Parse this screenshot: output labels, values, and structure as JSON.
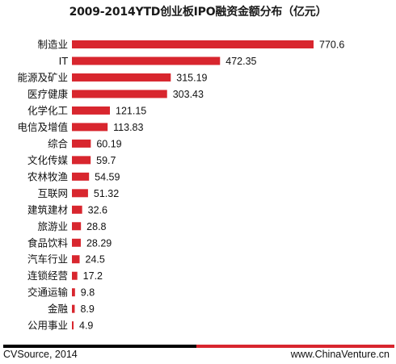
{
  "chart_data": {
    "type": "bar",
    "orientation": "horizontal",
    "title": "2009-2014YTD创业板IPO融资金额分布（亿元）",
    "categories": [
      "制造业",
      "IT",
      "能源及矿业",
      "医疗健康",
      "化学化工",
      "电信及增值",
      "综合",
      "文化传媒",
      "农林牧渔",
      "互联网",
      "建筑建材",
      "旅游业",
      "食品饮料",
      "汽车行业",
      "连锁经营",
      "交通运输",
      "金融",
      "公用事业"
    ],
    "values": [
      770.6,
      472.35,
      315.19,
      303.43,
      121.15,
      113.83,
      60.19,
      59.7,
      54.59,
      51.32,
      32.6,
      28.8,
      28.29,
      24.5,
      17.2,
      9.8,
      8.9,
      4.9
    ],
    "value_labels": [
      "770.6",
      "472.35",
      "315.19",
      "303.43",
      "121.15",
      "113.83",
      "60.19",
      "59.7",
      "54.59",
      "51.32",
      "32.6",
      "28.8",
      "28.29",
      "24.5",
      "17.2",
      "9.8",
      "8.9",
      "4.9"
    ],
    "bar_color": "#d8262e",
    "grid": false,
    "legend": "none"
  },
  "footer": {
    "source": "CVSource, 2014",
    "site": "www.ChinaVenture.cn"
  }
}
